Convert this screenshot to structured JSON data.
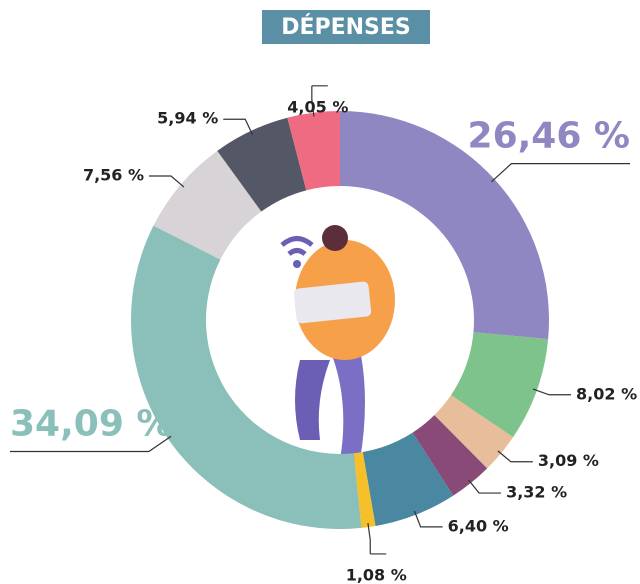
{
  "chart_data": {
    "type": "donut",
    "title": "DÉPENSES",
    "categories": [
      null,
      null,
      null,
      null,
      null,
      null,
      null,
      null,
      null,
      null
    ],
    "values": [
      26.46,
      8.02,
      3.09,
      3.32,
      6.4,
      1.08,
      34.09,
      7.56,
      5.94,
      4.05
    ],
    "value_labels": [
      "26,46 %",
      "8,02 %",
      "3,09 %",
      "3,32 %",
      "6,40 %",
      "1,08 %",
      "34,09 %",
      "7,56 %",
      "5,94 %",
      "4,05 %"
    ],
    "colors": [
      "#8f87c2",
      "#7dc38b",
      "#e8bd9c",
      "#8a4a78",
      "#4a87a0",
      "#f5c02a",
      "#8bbfb9",
      "#d8d3d6",
      "#545866",
      "#ef6b82"
    ]
  }
}
